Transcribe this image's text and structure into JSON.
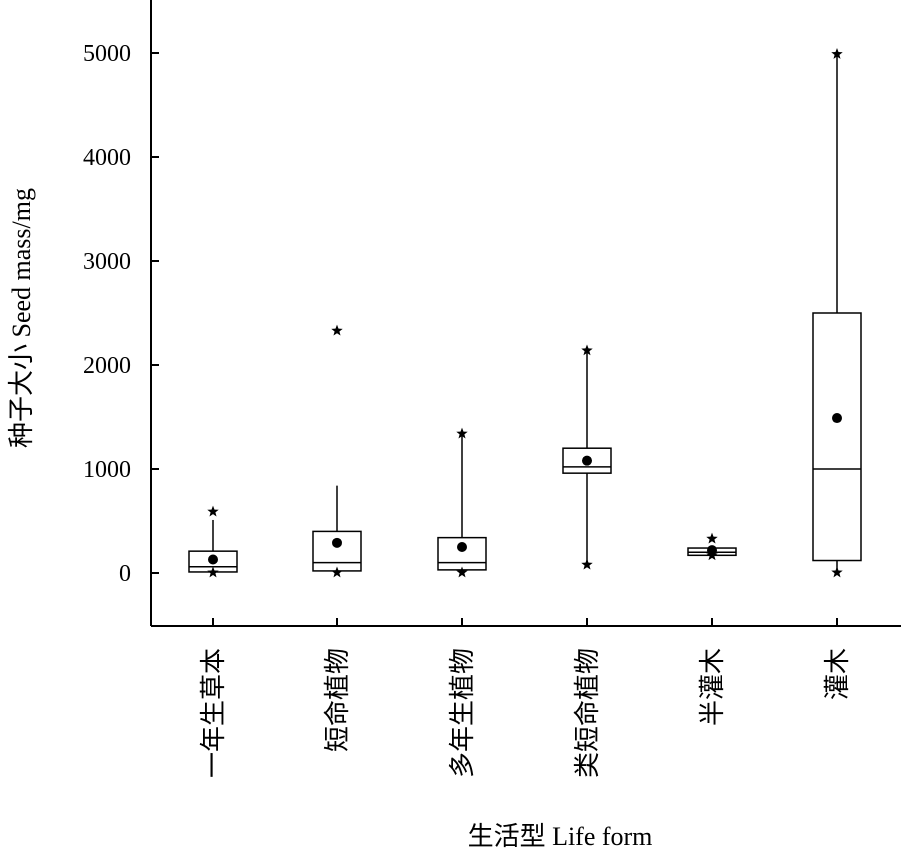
{
  "chart_data": {
    "type": "box",
    "xlabel": "生活型 Life form",
    "ylabel": "种子大小 Seed mass/mg",
    "ylim": [
      -500,
      5500
    ],
    "yticks": [
      0,
      1000,
      2000,
      3000,
      4000,
      5000
    ],
    "categories": [
      "一年生草本",
      "短命植物",
      "多年生植物",
      "类短命植物",
      "半灌木",
      "灌木"
    ],
    "boxes": [
      {
        "category": "一年生草本",
        "q1": 10,
        "median": 60,
        "q3": 210,
        "mean": 130,
        "whisker_low": 10,
        "whisker_high": 510,
        "outliers": [
          590,
          5
        ]
      },
      {
        "category": "短命植物",
        "q1": 20,
        "median": 100,
        "q3": 400,
        "mean": 290,
        "whisker_low": 20,
        "whisker_high": 840,
        "outliers": [
          2330,
          5
        ]
      },
      {
        "category": "多年生植物",
        "q1": 30,
        "median": 100,
        "q3": 340,
        "mean": 250,
        "whisker_low": 30,
        "whisker_high": 1340,
        "outliers": [
          1340,
          5
        ]
      },
      {
        "category": "类短命植物",
        "q1": 960,
        "median": 1020,
        "q3": 1200,
        "mean": 1080,
        "whisker_low": 80,
        "whisker_high": 2140,
        "outliers": [
          2140,
          80
        ]
      },
      {
        "category": "半灌木",
        "q1": 170,
        "median": 200,
        "q3": 240,
        "mean": 220,
        "whisker_low": 170,
        "whisker_high": 240,
        "outliers": [
          330,
          170
        ]
      },
      {
        "category": "灌木",
        "q1": 120,
        "median": 1000,
        "q3": 2500,
        "mean": 1490,
        "whisker_low": 0,
        "whisker_high": 4990,
        "outliers": [
          4990,
          5
        ]
      }
    ],
    "grid": false,
    "legend": "none"
  }
}
